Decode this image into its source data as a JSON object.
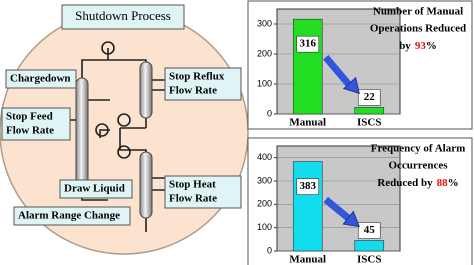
{
  "diagram": {
    "title": "Shutdown Process",
    "labels": [
      [
        "Chargedown"
      ],
      [
        "Stop Feed",
        "Flow Rate"
      ],
      [
        "Stop Reflux",
        "Flow Rate"
      ],
      [
        "Draw Liquid"
      ],
      [
        "Stop Heat",
        "Flow Rate"
      ],
      [
        "Alarm Range Change"
      ]
    ]
  },
  "chart_data": [
    {
      "type": "bar",
      "title_lines": [
        "Number of Manual",
        "Operations Reduced",
        "by"
      ],
      "reduction": 93,
      "reduction_unit": "%",
      "categories": [
        "Manual",
        "ISCS"
      ],
      "values": [
        316,
        22
      ],
      "color": "#22dd22",
      "ylim": [
        0,
        350
      ],
      "yticks": [
        0,
        100,
        200,
        300
      ],
      "grid": true
    },
    {
      "type": "bar",
      "title_lines": [
        "Frequency of Alarm",
        "Occurrences",
        "Reduced by"
      ],
      "reduction": 88,
      "reduction_unit": "%",
      "categories": [
        "Manual",
        "ISCS"
      ],
      "values": [
        383,
        45
      ],
      "color": "#11ddee",
      "ylim": [
        0,
        450
      ],
      "yticks": [
        0,
        100,
        200,
        300,
        400
      ],
      "grid": true
    }
  ]
}
